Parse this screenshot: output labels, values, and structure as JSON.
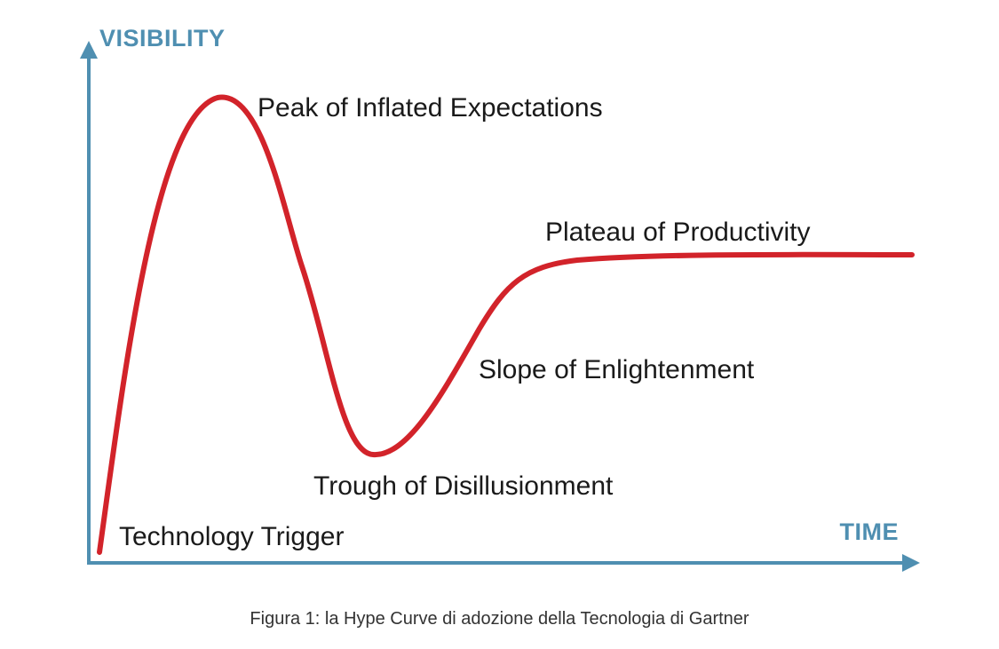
{
  "axes": {
    "y_title": "VISIBILITY",
    "x_title": "TIME",
    "color": "#4f8fb1"
  },
  "curve": {
    "color": "#d2232a"
  },
  "phases": [
    {
      "label": "Technology Trigger"
    },
    {
      "label": "Peak of Inflated Expectations"
    },
    {
      "label": "Trough of Disillusionment"
    },
    {
      "label": "Slope of Enlightenment"
    },
    {
      "label": "Plateau of Productivity"
    }
  ],
  "caption": "Figura 1: la Hype Curve di adozione della Tecnologia di Gartner"
}
